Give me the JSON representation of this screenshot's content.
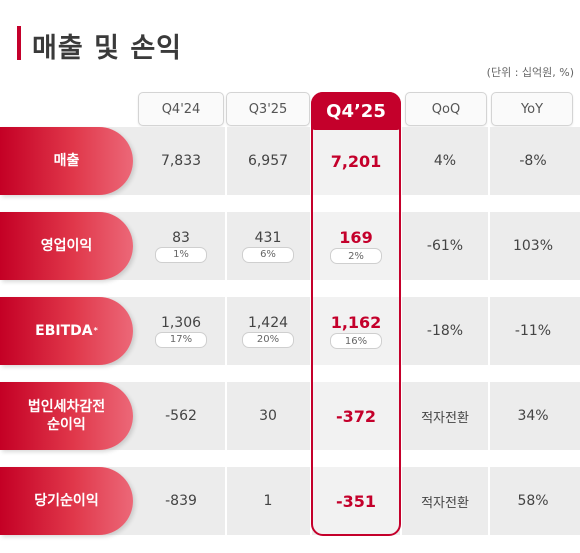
{
  "title": "매출 및 손익",
  "unit_note": "(단위 : 십억원, %)",
  "columns": [
    "Q4'24",
    "Q3'25",
    "Q4’25",
    "QoQ",
    "YoY"
  ],
  "rows": [
    {
      "label": "매출",
      "q4_24": "7,833",
      "q3_25": "6,957",
      "q4_25": "7,201",
      "qoq": "4%",
      "yoy": "-8%"
    },
    {
      "label": "영업이익",
      "q4_24": "83",
      "q4_24_pct": "1%",
      "q3_25": "431",
      "q3_25_pct": "6%",
      "q4_25": "169",
      "q4_25_pct": "2%",
      "qoq": "-61%",
      "yoy": "103%"
    },
    {
      "label": "EBITDA",
      "footnote": "*",
      "q4_24": "1,306",
      "q4_24_pct": "17%",
      "q3_25": "1,424",
      "q3_25_pct": "20%",
      "q4_25": "1,162",
      "q4_25_pct": "16%",
      "qoq": "-18%",
      "yoy": "-11%"
    },
    {
      "label_line1": "법인세차감전",
      "label_line2": "순이익",
      "q4_24": "-562",
      "q3_25": "30",
      "q4_25": "-372",
      "qoq": "적자전환",
      "yoy": "34%"
    },
    {
      "label": "당기순이익",
      "q4_24": "-839",
      "q3_25": "1",
      "q4_25": "-351",
      "qoq": "적자전환",
      "yoy": "58%"
    }
  ],
  "colors": {
    "accent": "#c4002b",
    "band": "#ececec"
  }
}
